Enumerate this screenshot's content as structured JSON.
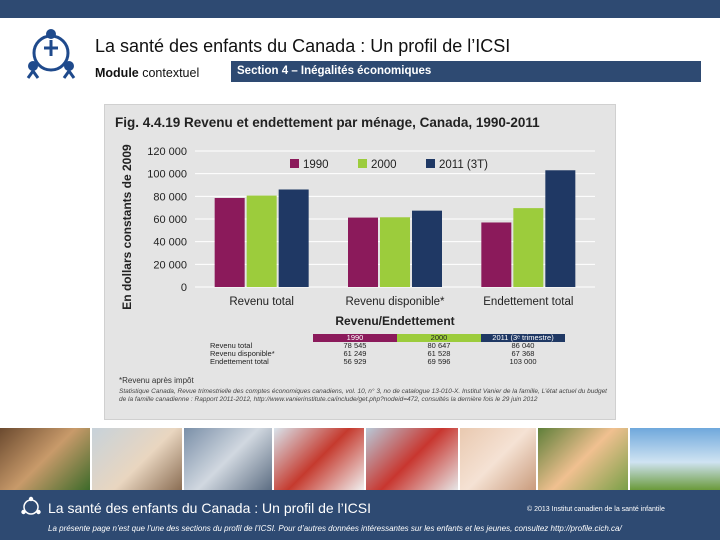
{
  "header": {
    "title": "La santé des enfants du Canada : Un profil de l’ICSI",
    "module_label": "Module",
    "module_value": "contextuel",
    "section": "Section 4 – Inégalités économiques"
  },
  "chart_data": {
    "type": "bar",
    "title": "Fig. 4.4.19   Revenu et endettement par ménage, Canada, 1990-2011",
    "xlabel": "Revenu/Endettement",
    "ylabel": "En dollars constants de 2009",
    "categories": [
      "Revenu total",
      "Revenu disponible*",
      "Endettement total"
    ],
    "series": [
      {
        "name": "1990",
        "values": [
          78545,
          61249,
          56929
        ],
        "color": "#8b1a5b"
      },
      {
        "name": "2000",
        "values": [
          80647,
          61528,
          69596
        ],
        "color": "#9ccc3c"
      },
      {
        "name": "2011 (3T)",
        "values": [
          86040,
          67368,
          103000
        ],
        "color": "#1f3864"
      }
    ],
    "ylim": [
      0,
      120000
    ],
    "yticks": [
      "0",
      "20 000",
      "40 000",
      "60 000",
      "80 000",
      "100 000",
      "120 000"
    ],
    "grid": true,
    "legend_position": "top"
  },
  "table": {
    "headers": [
      "1990",
      "2000",
      "2011 (3ᵉ trimestre)"
    ],
    "rows": [
      {
        "label": "Revenu total",
        "values": [
          "78 545",
          "80 647",
          "86 040"
        ]
      },
      {
        "label": "Revenu disponible*",
        "values": [
          "61 249",
          "61 528",
          "67 368"
        ]
      },
      {
        "label": "Endettement total",
        "values": [
          "56 929",
          "69 596",
          "103 000"
        ]
      }
    ]
  },
  "note": "*Revenu après impôt",
  "source": "Statistique Canada, Revue trimestrielle des comptes économiques canadiens, vol. 10, n° 3, no de catalogue 13-010-X. Institut Vanier de la famille, L’état actuel du budget de la famille canadienne : Rapport 2011-2012, http://www.vanierinstitute.ca/include/get.php?nodeid=472, consultés la dernière fois le 29 juin 2012",
  "footer": {
    "title": "La santé des enfants du Canada : Un profil de l’ICSI",
    "copyright": "© 2013 Institut canadien de la santé infantile",
    "note": "La présente page n’est que l’une des sections du profil de l’ICSI. Pour d’autres données intéressantes sur les enfants et les jeunes, consultez http://profile.cich.ca/"
  },
  "colors": {
    "brand": "#2e4a72",
    "series_1990": "#8b1a5b",
    "series_2000": "#9ccc3c",
    "series_2011": "#1f3864"
  }
}
